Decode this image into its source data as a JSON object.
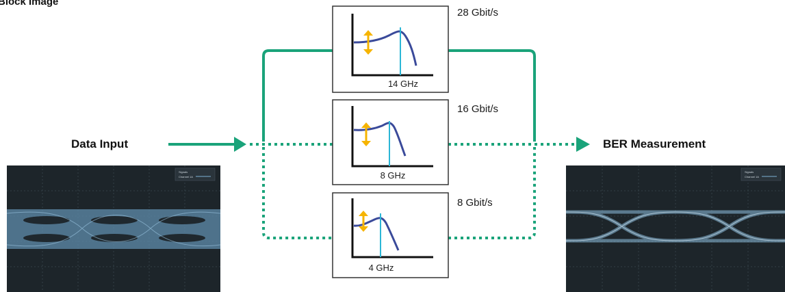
{
  "title": "Block Image",
  "input_label": "Data Input",
  "output_label": "BER Measurement",
  "paths": [
    {
      "rate": "28 Gbit/s",
      "bandwidth": "14 GHz",
      "active": true
    },
    {
      "rate": "16 Gbit/s",
      "bandwidth": "8 GHz",
      "active": false
    },
    {
      "rate": "8 Gbit/s",
      "bandwidth": "4 GHz",
      "active": false
    }
  ],
  "colors": {
    "path": "#1aa37a",
    "curve": "#3a4a9a",
    "marker": "#2bb6d6",
    "amplitude_arrow": "#f6b400",
    "box_border": "#333333",
    "scope_bg": "#1d252a",
    "eye_trace": "#7fb2d6"
  },
  "scopes": {
    "input": {
      "legend_line1": "Signals",
      "legend_line2": "Channel 1A"
    },
    "output": {
      "legend_line1": "Signals",
      "legend_line2": "Channel 1A"
    }
  }
}
